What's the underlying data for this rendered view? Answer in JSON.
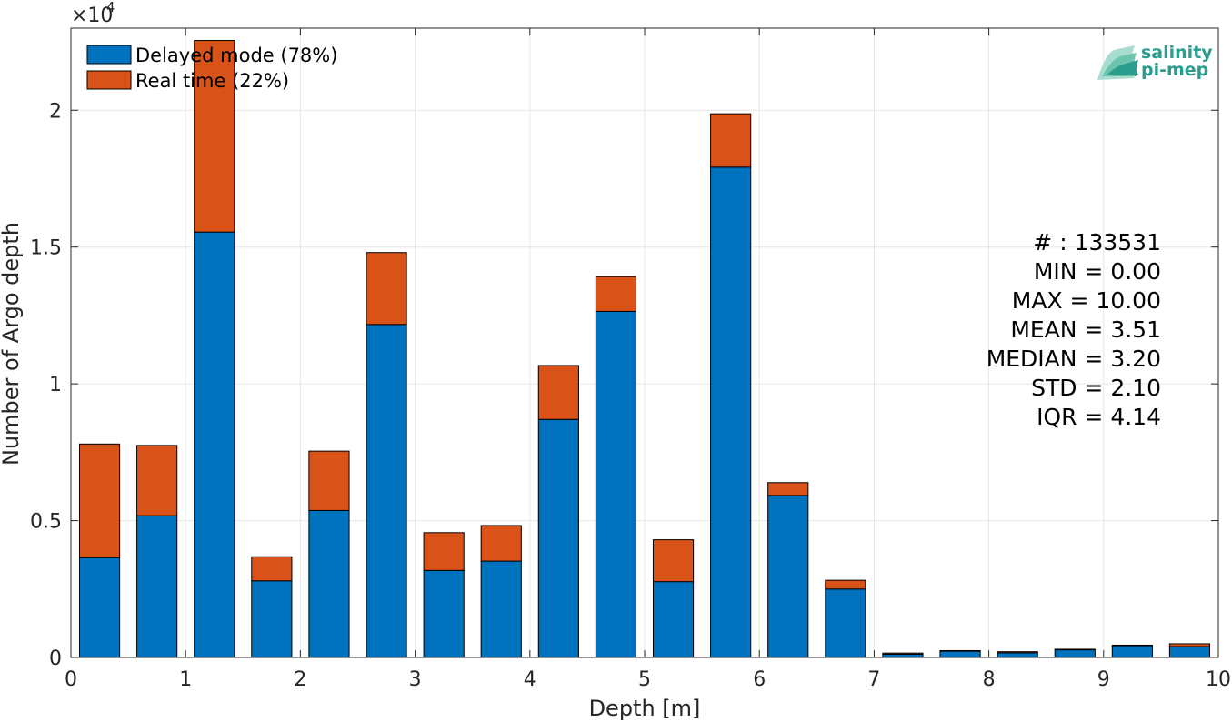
{
  "chart_data": {
    "type": "bar",
    "stacked": true,
    "xlabel": "Depth [m]",
    "ylabel": "Number of Argo depth",
    "y_exponent_label": "×10",
    "y_exponent_power": "4",
    "xlim": [
      0,
      10
    ],
    "ylim": [
      0,
      23000
    ],
    "xticks": [
      0,
      1,
      2,
      3,
      4,
      5,
      6,
      7,
      8,
      9,
      10
    ],
    "yticks": [
      0,
      5000,
      10000,
      15000,
      20000
    ],
    "ytick_labels": [
      "0",
      "0.5",
      "1",
      "1.5",
      "2"
    ],
    "grid": true,
    "legend_position": "top-left",
    "x": [
      0.25,
      0.75,
      1.25,
      1.75,
      2.25,
      2.75,
      3.25,
      3.75,
      4.25,
      4.75,
      5.25,
      5.75,
      6.25,
      6.75,
      7.25,
      7.75,
      8.25,
      8.75,
      9.25,
      9.75
    ],
    "series": [
      {
        "name": "Delayed mode (78%)",
        "color": "#0072BD",
        "values": [
          3650,
          5180,
          15550,
          2800,
          5370,
          12170,
          3180,
          3520,
          8700,
          12650,
          2770,
          17920,
          5920,
          2500,
          120,
          230,
          170,
          280,
          430,
          400
        ]
      },
      {
        "name": "Real time (22%)",
        "color": "#D95319",
        "values": [
          4150,
          2570,
          7000,
          880,
          2170,
          2630,
          1380,
          1300,
          1970,
          1270,
          1530,
          1950,
          470,
          320,
          40,
          20,
          40,
          20,
          20,
          100
        ]
      }
    ]
  },
  "stats": [
    "# : 133531",
    "MIN = 0.00",
    "MAX =  10.00",
    "MEAN = 3.51",
    "MEDIAN = 3.20",
    "STD = 2.10",
    "IQR = 4.14"
  ],
  "logo": {
    "line1": "salinity",
    "line2": "pi-mep",
    "color": "#2a9d8f"
  }
}
